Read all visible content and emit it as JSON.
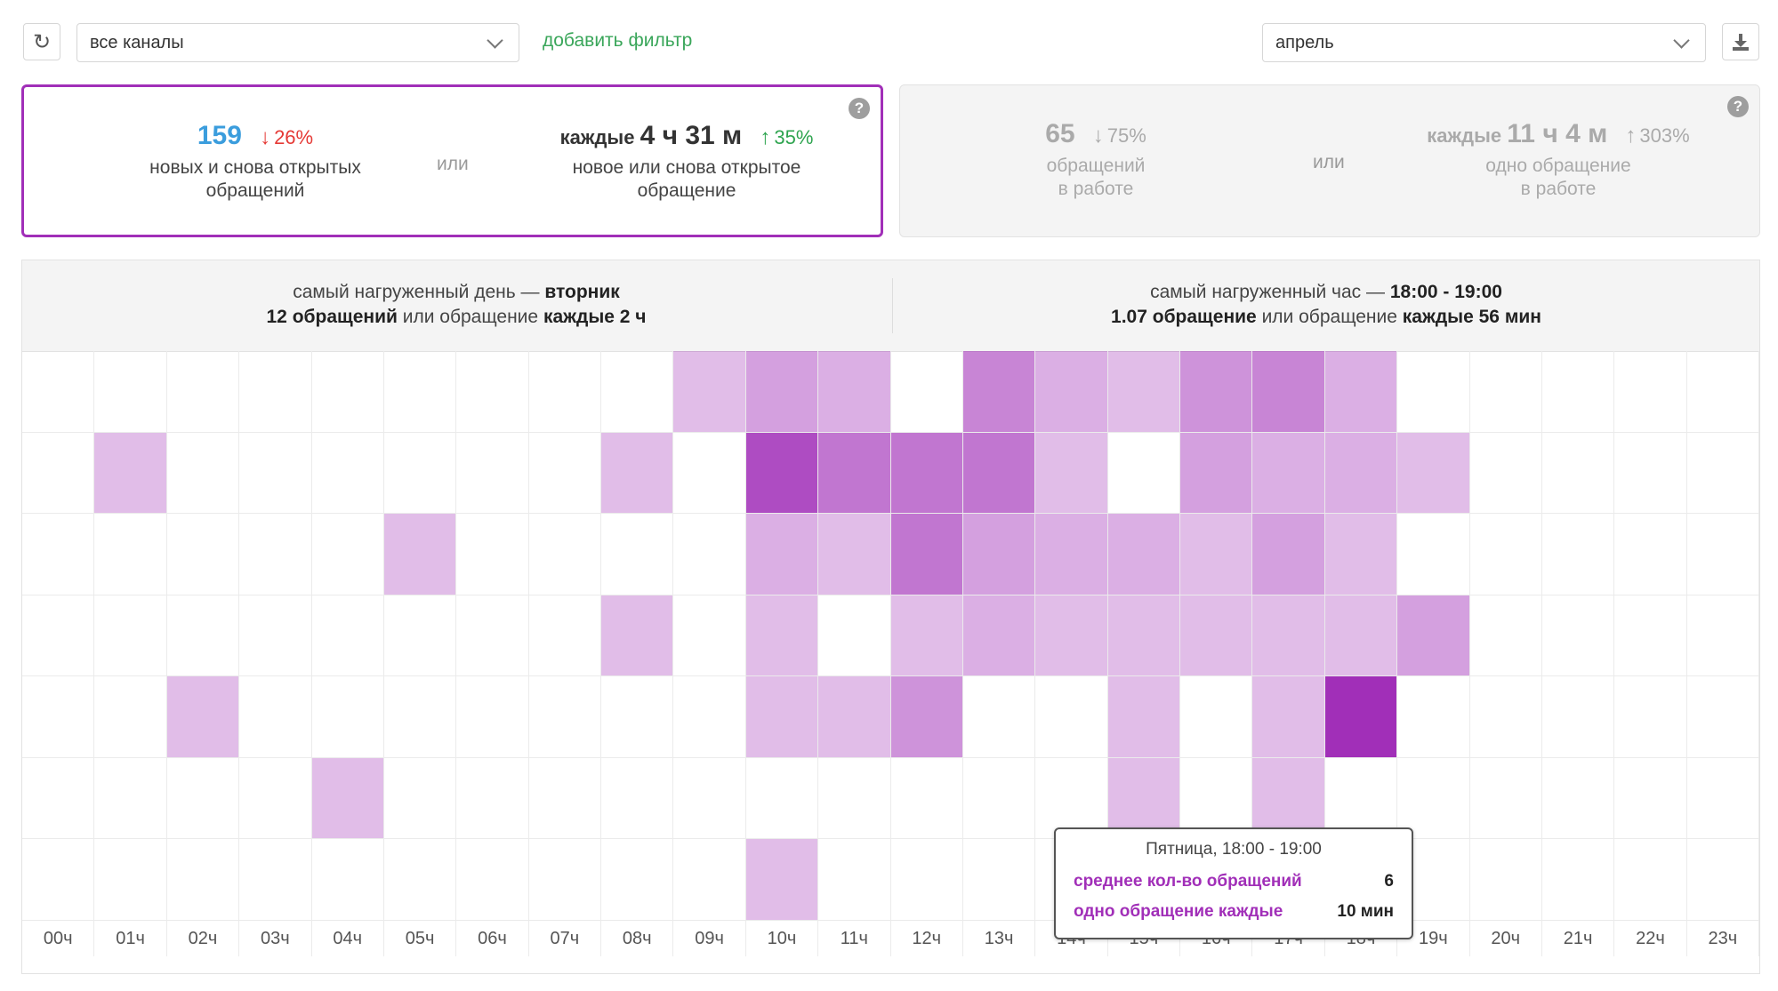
{
  "toolbar": {
    "channel_select": "все каналы",
    "add_filter": "добавить фильтр",
    "period_select": "апрель"
  },
  "cards": {
    "new": {
      "count": "159",
      "count_change": "26%",
      "count_label": "новых и снова открытых обращений",
      "or": "или",
      "every_prefix": "каждые",
      "every_value": "4 ч 31 м",
      "every_change": "35%",
      "every_label": "новое или снова открытое обращение"
    },
    "in_work": {
      "count": "65",
      "count_change": "75%",
      "count_label_1": "обращений",
      "count_label_2": "в работе",
      "or": "или",
      "every_prefix": "каждые",
      "every_value": "11 ч 4 м",
      "every_change": "303%",
      "every_label_1": "одно обращение",
      "every_label_2": "в работе"
    }
  },
  "summary": {
    "day_line1_prefix": "самый нагруженный день —",
    "day_name": "вторник",
    "day_count": "12 обращений",
    "day_mid": "или обращение",
    "day_every": "каждые 2 ч",
    "hour_line1_prefix": "самый нагруженный час —",
    "hour_range": "18:00 - 19:00",
    "hour_count": "1.07 обращение",
    "hour_mid": "или обращение",
    "hour_every": "каждые 56 мин"
  },
  "colors": {
    "accent": "#a12fb8",
    "down": "#e53935",
    "up": "#2ea44f",
    "count_blue": "#3b9ddd"
  },
  "tooltip": {
    "title": "Пятница, 18:00 - 19:00",
    "row1_label": "среднее кол-во обращений",
    "row1_value": "6",
    "row2_label": "одно обращение каждые",
    "row2_value": "10 мин"
  },
  "chart_data": {
    "type": "heatmap",
    "x_labels": [
      "00ч",
      "01ч",
      "02ч",
      "03ч",
      "04ч",
      "05ч",
      "06ч",
      "07ч",
      "08ч",
      "09ч",
      "10ч",
      "11ч",
      "12ч",
      "13ч",
      "14ч",
      "15ч",
      "16ч",
      "17ч",
      "18ч",
      "19ч",
      "20ч",
      "21ч",
      "22ч",
      "23ч"
    ],
    "rows": 7,
    "values": [
      [
        0,
        0,
        0,
        0,
        0,
        0,
        0,
        0,
        0,
        1,
        2,
        1.5,
        0,
        3,
        1.5,
        1,
        2.5,
        3,
        1.5,
        0,
        0,
        0,
        0,
        0
      ],
      [
        0,
        1,
        0,
        0,
        0,
        0,
        0,
        0,
        1,
        0,
        5,
        3.5,
        3.5,
        3.5,
        1,
        0,
        2,
        1.5,
        1.5,
        1,
        0,
        0,
        0,
        0
      ],
      [
        0,
        0,
        0,
        0,
        0,
        1,
        0,
        0,
        0,
        0,
        1.5,
        1,
        3.5,
        2,
        1.5,
        1.5,
        1,
        2,
        1,
        0,
        0,
        0,
        0,
        0
      ],
      [
        0,
        0,
        0,
        0,
        0,
        0,
        0,
        0,
        1,
        0,
        1,
        0,
        1,
        1.5,
        1,
        1,
        1,
        1,
        1,
        2,
        0,
        0,
        0,
        0
      ],
      [
        0,
        0,
        1,
        0,
        0,
        0,
        0,
        0,
        0,
        0,
        1,
        1,
        2.5,
        0,
        0,
        1,
        0,
        1,
        6,
        0,
        0,
        0,
        0,
        0
      ],
      [
        0,
        0,
        0,
        0,
        1,
        0,
        0,
        0,
        0,
        0,
        0,
        0,
        0,
        0,
        0,
        1,
        0,
        1,
        0,
        0,
        0,
        0,
        0,
        0
      ],
      [
        0,
        0,
        0,
        0,
        0,
        0,
        0,
        0,
        0,
        0,
        1,
        0,
        0,
        0,
        0,
        0,
        0,
        0,
        0,
        0,
        0,
        0,
        0,
        0
      ]
    ],
    "max": 6,
    "color": "#a12fb8"
  }
}
